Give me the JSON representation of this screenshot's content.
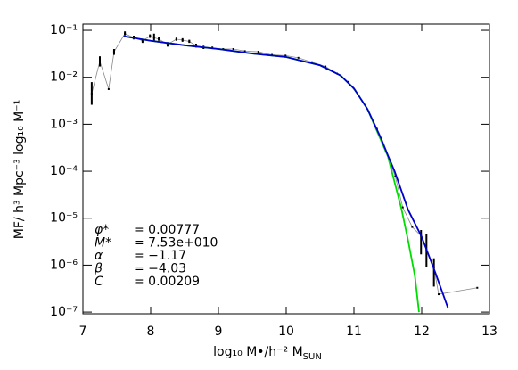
{
  "chart_data": {
    "type": "line",
    "y_label": "MF/ h³ Mpc⁻³ log₁₀ M⁻¹",
    "x_label": "log₁₀ M•/h⁻² M",
    "x_label_subscript": "SUN",
    "xlim": [
      7,
      13
    ],
    "xticks": [
      7,
      8,
      9,
      10,
      11,
      12,
      13
    ],
    "ylim": [
      9.2e-08,
      0.136
    ],
    "log_y": true,
    "yticks": [
      {
        "value": 1e-07,
        "label": "10⁻⁷"
      },
      {
        "value": 1e-06,
        "label": "10⁻⁶"
      },
      {
        "value": 1e-05,
        "label": "10⁻⁵"
      },
      {
        "value": 0.0001,
        "label": "10⁻⁴"
      },
      {
        "value": 0.001,
        "label": "10⁻³"
      },
      {
        "value": 0.01,
        "label": "10⁻²"
      },
      {
        "value": 0.1,
        "label": "10⁻¹"
      }
    ],
    "series": [
      {
        "style": "errorbar",
        "color": "#000000",
        "line_color": "#888888",
        "x": [
          7.13,
          7.25,
          7.38,
          7.46,
          7.62,
          7.75,
          7.88,
          7.99,
          8.05,
          8.12,
          8.25,
          8.38,
          8.47,
          8.57,
          8.67,
          8.78,
          8.91,
          9.07,
          9.22,
          9.39,
          9.59,
          9.79,
          9.99,
          10.18,
          10.38,
          10.58,
          10.75,
          10.91,
          11.07,
          11.21,
          11.34,
          11.47,
          11.61,
          11.72,
          11.86,
          11.99,
          12.07,
          12.18,
          12.25,
          12.82
        ],
        "values": [
          0.0045,
          0.022,
          0.0056,
          0.035,
          0.085,
          0.07,
          0.06,
          0.075,
          0.07,
          0.065,
          0.05,
          0.065,
          0.062,
          0.058,
          0.047,
          0.043,
          0.042,
          0.04,
          0.04,
          0.036,
          0.035,
          0.03,
          0.029,
          0.026,
          0.021,
          0.017,
          0.012,
          0.008,
          0.004,
          0.0019,
          0.0008,
          0.00026,
          7.8e-05,
          1.7e-05,
          6.5e-06,
          4.2e-06,
          2.1e-06,
          9e-07,
          2.4e-07,
          3.3e-07
        ],
        "lower": [
          0.0026,
          0.017,
          null,
          0.03,
          0.078,
          0.064,
          0.054,
          0.069,
          0.06,
          0.06,
          0.045,
          0.06,
          0.057,
          0.054,
          0.043,
          0.04,
          0.04,
          null,
          null,
          null,
          null,
          null,
          null,
          null,
          null,
          null,
          null,
          null,
          null,
          null,
          null,
          null,
          null,
          null,
          null,
          1.7e-06,
          9e-07,
          3.5e-07,
          null,
          null
        ],
        "upper": [
          0.0079,
          0.028,
          null,
          0.04,
          0.095,
          0.077,
          0.066,
          0.082,
          0.085,
          0.072,
          0.056,
          0.07,
          0.068,
          0.063,
          0.052,
          0.047,
          0.045,
          null,
          null,
          null,
          null,
          null,
          null,
          null,
          null,
          null,
          null,
          null,
          null,
          null,
          null,
          null,
          null,
          null,
          null,
          5.6e-06,
          4.7e-06,
          1.4e-06,
          null,
          null
        ]
      },
      {
        "style": "line",
        "color": "#00dd00",
        "x": [
          7.6,
          8.0,
          8.5,
          9.0,
          9.5,
          10.0,
          10.5,
          10.8,
          11.0,
          11.2,
          11.4,
          11.5,
          11.6,
          11.7,
          11.8,
          11.9,
          11.96
        ],
        "values": [
          0.075,
          0.06,
          0.048,
          0.04,
          0.032,
          0.027,
          0.018,
          0.011,
          0.0058,
          0.0021,
          0.00045,
          0.00021,
          5.8e-05,
          1.6e-05,
          3.3e-06,
          5.8e-07,
          1e-07
        ]
      },
      {
        "style": "line",
        "color": "#0000cc",
        "x": [
          7.6,
          8.0,
          8.5,
          9.0,
          9.5,
          10.0,
          10.5,
          10.8,
          11.0,
          11.2,
          11.4,
          11.5,
          11.6,
          11.8,
          12.0,
          12.2,
          12.39
        ],
        "values": [
          0.075,
          0.06,
          0.048,
          0.04,
          0.032,
          0.027,
          0.018,
          0.011,
          0.0058,
          0.0021,
          0.0005,
          0.00022,
          0.0001,
          1.5e-05,
          4e-06,
          7e-07,
          1.2e-07
        ]
      }
    ],
    "annotations": [
      [
        "φ*",
        "= 0.00777"
      ],
      [
        "M*",
        "= 7.53e+010"
      ],
      [
        "α",
        "= −1.17"
      ],
      [
        "β",
        "= −4.03"
      ],
      [
        "C",
        "= 0.00209"
      ]
    ]
  }
}
